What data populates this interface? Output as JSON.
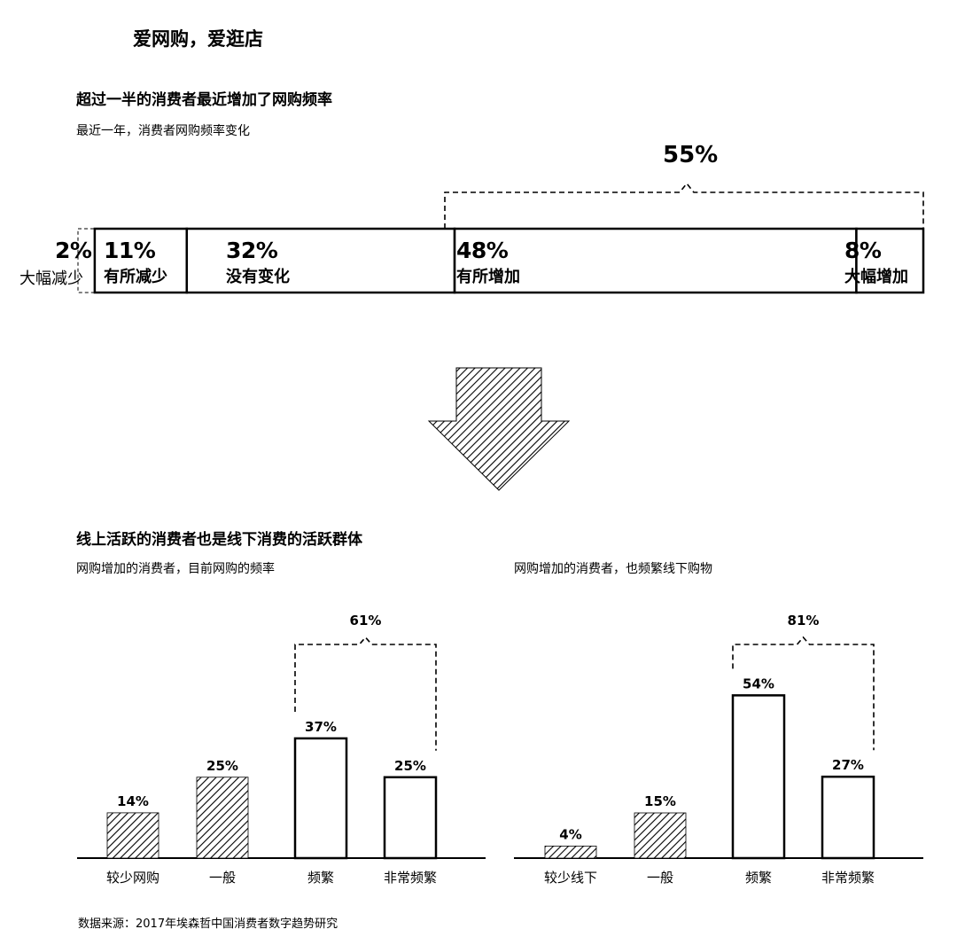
{
  "page_title": "爱网购，爱逛店",
  "section1": {
    "title": "超过一半的消费者最近增加了网购频率",
    "subtitle": "最近一年，消费者网购频率变化",
    "bracket_label": "55%"
  },
  "section2": {
    "title": "线上活跃的消费者也是线下消费的活跃群体",
    "left_subtitle": "网购增加的消费者，目前网购的频率",
    "right_subtitle": "网购增加的消费者，也频繁线下购物"
  },
  "source": "数据来源：2017年埃森哲中国消费者数字趋势研究",
  "chart_data": [
    {
      "type": "bar",
      "orientation": "stacked-horizontal",
      "title": "最近一年，消费者网购频率变化",
      "categories": [
        "大幅减少",
        "有所减少",
        "没有变化",
        "有所增加",
        "大幅增加"
      ],
      "values": [
        2,
        11,
        32,
        48,
        8
      ],
      "value_labels": [
        "2%",
        "11%",
        "32%",
        "48%",
        "8%"
      ],
      "bracket": {
        "categories": [
          "有所增加",
          "大幅增加"
        ],
        "label": "55%"
      }
    },
    {
      "type": "bar",
      "title": "网购增加的消费者，目前网购的频率",
      "categories": [
        "较少网购",
        "一般",
        "频繁",
        "非常频繁"
      ],
      "values": [
        14,
        25,
        37,
        25
      ],
      "value_labels": [
        "14%",
        "25%",
        "37%",
        "25%"
      ],
      "hatched": [
        true,
        true,
        false,
        false
      ],
      "bracket": {
        "categories": [
          "频繁",
          "非常频繁"
        ],
        "label": "61%"
      }
    },
    {
      "type": "bar",
      "title": "网购增加的消费者，也频繁线下购物",
      "categories": [
        "较少线下",
        "一般",
        "频繁",
        "非常频繁"
      ],
      "values": [
        4,
        15,
        54,
        27
      ],
      "value_labels": [
        "4%",
        "15%",
        "54%",
        "27%"
      ],
      "hatched": [
        true,
        true,
        false,
        false
      ],
      "bracket": {
        "categories": [
          "频繁",
          "非常频繁"
        ],
        "label": "81%"
      }
    }
  ]
}
